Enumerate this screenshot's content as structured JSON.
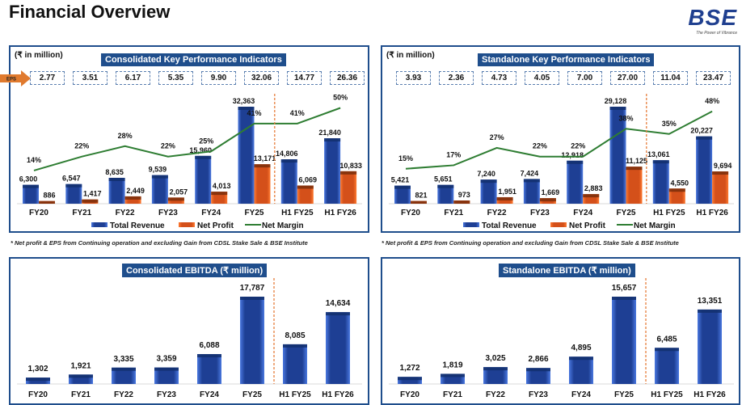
{
  "page": {
    "title": "Financial Overview",
    "logo_text": "BSE",
    "logo_tagline": "The Power of Vibrance",
    "footnote": "* Net profit & EPS from Continuing operation and excluding Gain from CDSL Stake Sale & BSE Institute"
  },
  "colors": {
    "panel_border": "#1f4e8c",
    "revenue": "#2b4fae",
    "profit": "#e0561b",
    "margin": "#2e7d32",
    "divider": "#e67e3c"
  },
  "chart_data": [
    {
      "id": "consolidated_kpi",
      "type": "bar",
      "title": "Consolidated Key Performance Indicators",
      "unit_label": "(₹ in million)",
      "eps_label": "EPS",
      "eps": [
        "2.77",
        "3.51",
        "6.17",
        "5.35",
        "9.90",
        "32.06",
        "14.77",
        "26.36"
      ],
      "categories": [
        "FY20",
        "FY21",
        "FY22",
        "FY23",
        "FY24",
        "FY25",
        "H1 FY25",
        "H1 FY26"
      ],
      "series": [
        {
          "name": "Total Revenue",
          "kind": "bar",
          "values": [
            6300,
            6547,
            8635,
            9539,
            15960,
            32363,
            14806,
            21840
          ],
          "labels": [
            "6,300",
            "6,547",
            "8,635",
            "9,539",
            "15,960",
            "32,363",
            "14,806",
            "21,840"
          ]
        },
        {
          "name": "Net Profit",
          "kind": "bar",
          "values": [
            886,
            1417,
            2449,
            2057,
            4013,
            13171,
            6069,
            10833
          ],
          "labels": [
            "886",
            "1,417",
            "2,449",
            "2,057",
            "4,013",
            "13,171",
            "6,069",
            "10,833"
          ]
        },
        {
          "name": "Net Margin",
          "kind": "line",
          "values": [
            14,
            22,
            28,
            22,
            25,
            41,
            41,
            50
          ],
          "labels": [
            "14%",
            "22%",
            "28%",
            "22%",
            "25%",
            "41%",
            "41%",
            "50%"
          ]
        }
      ],
      "legend": [
        "Total Revenue",
        "Net Profit",
        "Net Margin"
      ],
      "legend_position": "bottom",
      "divider_after": "FY25",
      "grid": false
    },
    {
      "id": "standalone_kpi",
      "type": "bar",
      "title": "Standalone Key Performance Indicators",
      "unit_label": "(₹ in million)",
      "eps": [
        "3.93",
        "2.36",
        "4.73",
        "4.05",
        "7.00",
        "27.00",
        "11.04",
        "23.47"
      ],
      "categories": [
        "FY20",
        "FY21",
        "FY22",
        "FY23",
        "FY24",
        "FY25",
        "H1 FY25",
        "H1 FY26"
      ],
      "series": [
        {
          "name": "Total Revenue",
          "kind": "bar",
          "values": [
            5421,
            5651,
            7240,
            7424,
            12918,
            29128,
            13061,
            20227
          ],
          "labels": [
            "5,421",
            "5,651",
            "7,240",
            "7,424",
            "12,918",
            "29,128",
            "13,061",
            "20,227"
          ]
        },
        {
          "name": "Net Profit",
          "kind": "bar",
          "values": [
            821,
            973,
            1951,
            1669,
            2883,
            11125,
            4550,
            9694
          ],
          "labels": [
            "821",
            "973",
            "1,951",
            "1,669",
            "2,883",
            "11,125",
            "4,550",
            "9,694"
          ]
        },
        {
          "name": "Net Margin",
          "kind": "line",
          "values": [
            15,
            17,
            27,
            22,
            22,
            38,
            35,
            48
          ],
          "labels": [
            "15%",
            "17%",
            "27%",
            "22%",
            "22%",
            "38%",
            "35%",
            "48%"
          ]
        }
      ],
      "legend": [
        "Total Revenue",
        "Net Profit",
        "Net Margin"
      ],
      "legend_position": "bottom",
      "divider_after": "FY25",
      "grid": false
    },
    {
      "id": "consolidated_ebitda",
      "type": "bar",
      "title": "Consolidated EBITDA (₹ million)",
      "categories": [
        "FY20",
        "FY21",
        "FY22",
        "FY23",
        "FY24",
        "FY25",
        "H1 FY25",
        "H1 FY26"
      ],
      "values": [
        1302,
        1921,
        3335,
        3359,
        6088,
        17787,
        8085,
        14634
      ],
      "labels": [
        "1,302",
        "1,921",
        "3,335",
        "3,359",
        "6,088",
        "17,787",
        "8,085",
        "14,634"
      ],
      "divider_after": "FY25",
      "grid": false
    },
    {
      "id": "standalone_ebitda",
      "type": "bar",
      "title": "Standalone EBITDA (₹ million)",
      "categories": [
        "FY20",
        "FY21",
        "FY22",
        "FY23",
        "FY24",
        "FY25",
        "H1 FY25",
        "H1 FY26"
      ],
      "values": [
        1272,
        1819,
        3025,
        2866,
        4895,
        15657,
        6485,
        13351
      ],
      "labels": [
        "1,272",
        "1,819",
        "3,025",
        "2,866",
        "4,895",
        "15,657",
        "6,485",
        "13,351"
      ],
      "divider_after": "FY25",
      "grid": false
    }
  ]
}
